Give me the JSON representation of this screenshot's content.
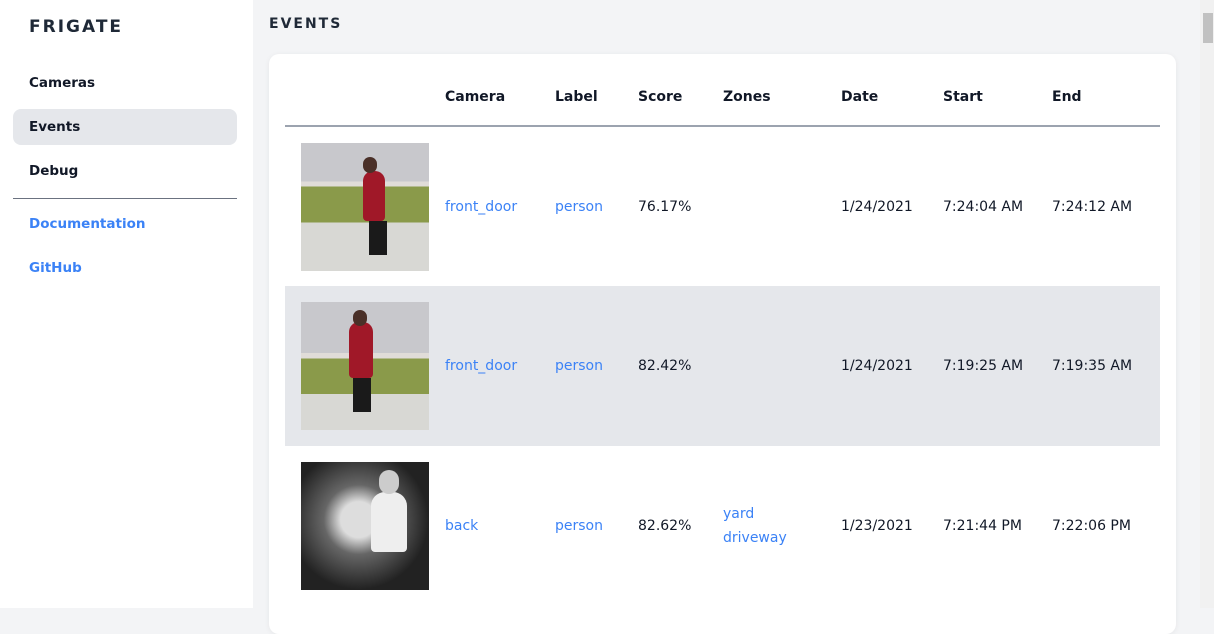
{
  "app": {
    "brand": "FRIGATE"
  },
  "sidebar": {
    "items": [
      {
        "label": "Cameras"
      },
      {
        "label": "Events",
        "active": true
      },
      {
        "label": "Debug"
      }
    ],
    "links": [
      {
        "label": "Documentation"
      },
      {
        "label": "GitHub"
      }
    ]
  },
  "page": {
    "title": "EVENTS"
  },
  "table": {
    "headers": [
      "",
      "Camera",
      "Label",
      "Score",
      "Zones",
      "Date",
      "Start",
      "End"
    ],
    "rows": [
      {
        "thumbnail": "person-with-dog-snapshot",
        "camera": "front_door",
        "label": "person",
        "score": "76.17%",
        "zones": [
          "",
          ""
        ],
        "date": "1/24/2021",
        "start": "7:24:04 AM",
        "end": "7:24:12 AM"
      },
      {
        "thumbnail": "person-with-dog-snapshot",
        "camera": "front_door",
        "label": "person",
        "score": "82.42%",
        "zones": [
          "",
          ""
        ],
        "date": "1/24/2021",
        "start": "7:19:25 AM",
        "end": "7:19:35 AM"
      },
      {
        "thumbnail": "night-person-snapshot",
        "camera": "back",
        "label": "person",
        "score": "82.62%",
        "zones": [
          "yard",
          "driveway"
        ],
        "date": "1/23/2021",
        "start": "7:21:44 PM",
        "end": "7:22:06 PM"
      }
    ]
  },
  "colors": {
    "accent": "#3b82f6",
    "active_bg": "#e5e7eb"
  }
}
